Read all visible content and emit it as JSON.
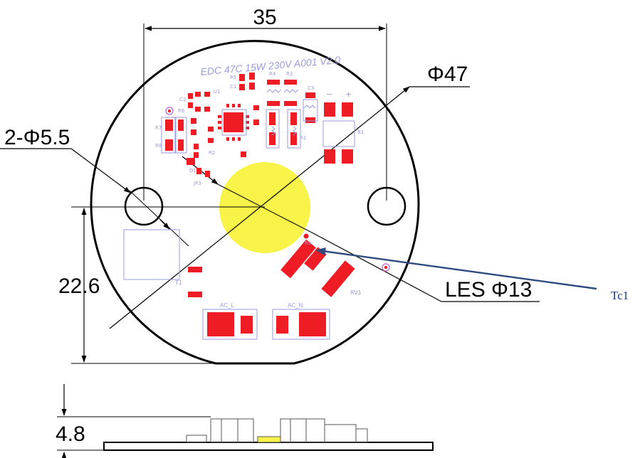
{
  "dimensions": {
    "width": "35",
    "diameter": "Φ47",
    "holes": "2-Φ5.5",
    "height": "22.6",
    "les": "LES Φ13",
    "thickness": "4.8"
  },
  "board": {
    "label": "EDC 47C 15W 230V A001 V2.0",
    "ac_l": "AC_L",
    "ac_n": "AC_N",
    "polarity_minus": "−",
    "polarity_plus": "+"
  },
  "refs": {
    "r5": "R5",
    "c1": "C1",
    "r4": "R4",
    "r3": "R3",
    "c3": "C3",
    "c2": "C2",
    "u1": "U1",
    "r6": "R6",
    "r7": "R7",
    "r8": "R8",
    "r2": "R2",
    "r1": "R1",
    "r9": "R9",
    "d1": "D1",
    "jp3": "JP3",
    "rv1": "RV1",
    "t1": "T1",
    "b1": "B1"
  },
  "callout": {
    "tc1": "Tc1"
  },
  "colors": {
    "pad": "#ee1c25",
    "les": "#f7f348",
    "arrow": "#2d4b7e",
    "silk": "#9a9ae0"
  }
}
